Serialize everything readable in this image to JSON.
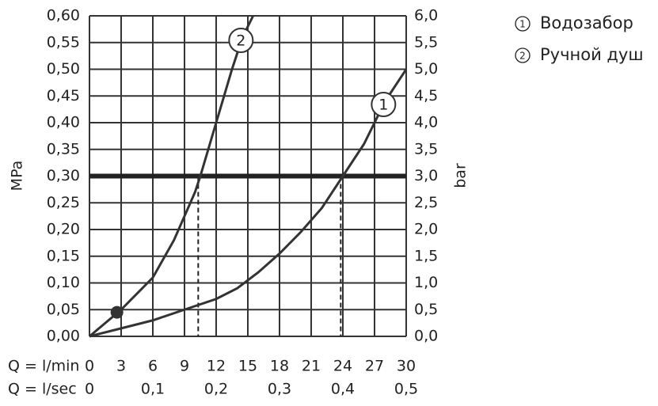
{
  "chart_data": {
    "type": "line",
    "x_label": "Q = l/min",
    "x2_label": "Q = l/sec",
    "y_label": "MPa",
    "y2_label": "bar",
    "xlim": [
      0,
      30
    ],
    "xticks": [
      0,
      3,
      6,
      9,
      12,
      15,
      18,
      21,
      24,
      27,
      30
    ],
    "x2lim": [
      0,
      0.5
    ],
    "x2ticks": [
      0,
      {
        "value": 0.1,
        "label": "0,1"
      },
      {
        "value": 0.2,
        "label": "0,2"
      },
      {
        "value": 0.3,
        "label": "0,3"
      },
      {
        "value": 0.4,
        "label": "0,4"
      },
      {
        "value": 0.5,
        "label": "0,5"
      }
    ],
    "ylim": [
      0,
      0.6
    ],
    "yticks": [
      {
        "value": 0,
        "label": "0,00"
      },
      {
        "value": 0.05,
        "label": "0,05"
      },
      {
        "value": 0.1,
        "label": "0,10"
      },
      {
        "value": 0.15,
        "label": "0,15"
      },
      {
        "value": 0.2,
        "label": "0,20"
      },
      {
        "value": 0.25,
        "label": "0,25"
      },
      {
        "value": 0.3,
        "label": "0,30"
      },
      {
        "value": 0.35,
        "label": "0,35"
      },
      {
        "value": 0.4,
        "label": "0,40"
      },
      {
        "value": 0.45,
        "label": "0,45"
      },
      {
        "value": 0.5,
        "label": "0,50"
      },
      {
        "value": 0.55,
        "label": "0,55"
      },
      {
        "value": 0.6,
        "label": "0,60"
      }
    ],
    "y2lim": [
      0,
      6
    ],
    "y2ticks": [
      {
        "value": 0,
        "label": "0,0"
      },
      {
        "value": 0.5,
        "label": "0,5"
      },
      {
        "value": 1,
        "label": "1,0"
      },
      {
        "value": 1.5,
        "label": "1,5"
      },
      {
        "value": 2,
        "label": "2,0"
      },
      {
        "value": 2.5,
        "label": "2,5"
      },
      {
        "value": 3,
        "label": "3,0"
      },
      {
        "value": 3.5,
        "label": "3,5"
      },
      {
        "value": 4,
        "label": "4,0"
      },
      {
        "value": 4.5,
        "label": "4,5"
      },
      {
        "value": 5,
        "label": "5,0"
      },
      {
        "value": 5.5,
        "label": "5,5"
      },
      {
        "value": 6,
        "label": "6,0"
      }
    ],
    "grid": true,
    "reference_line": 0.3,
    "drop_lines_x": [
      10.3,
      23.8
    ],
    "marker_point": {
      "x": 2.6,
      "y": 0.045
    },
    "series": [
      {
        "name": "Водозабор",
        "marker": "1",
        "color": "#333333",
        "x": [
          0,
          3,
          6,
          9,
          12,
          14,
          16,
          18,
          20,
          22,
          24,
          26,
          28,
          30
        ],
        "values": [
          0,
          0.015,
          0.03,
          0.05,
          0.07,
          0.09,
          0.12,
          0.155,
          0.195,
          0.24,
          0.3,
          0.36,
          0.44,
          0.5
        ]
      },
      {
        "name": "Ручной душ",
        "marker": "2",
        "color": "#333333",
        "x": [
          0,
          3,
          6,
          8,
          10,
          10.5,
          12,
          13.5,
          14.5,
          15.5
        ],
        "values": [
          0,
          0.05,
          0.11,
          0.18,
          0.27,
          0.3,
          0.4,
          0.5,
          0.56,
          0.6
        ]
      }
    ]
  }
}
